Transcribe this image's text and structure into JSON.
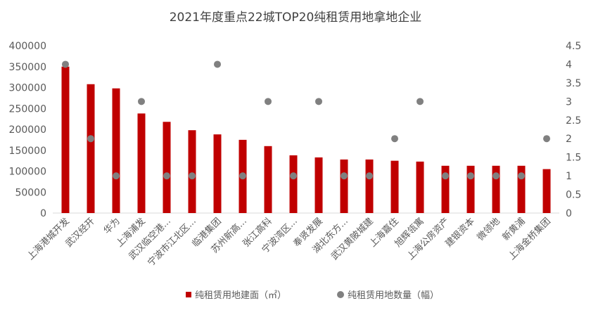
{
  "chart_data": {
    "type": "bar",
    "title": "2021年度重点22城TOP20纯租赁用地拿地企业",
    "categories": [
      "上海港城开发",
      "武汉经开",
      "华为",
      "上海浦发",
      "武汉临空港...",
      "宁波市江北区...",
      "临港集团",
      "苏州新高...",
      "张江高科",
      "宁波湾区...",
      "奉贤发展",
      "湖北东方...",
      "武汉黄陂城建",
      "上海嘉住",
      "旭辉瓴寓",
      "上海公房资产",
      "建银资本",
      "微领地",
      "新黄浦",
      "上海金桥集团"
    ],
    "series": [
      {
        "name": "纯租赁用地建面（㎡）",
        "type": "bar",
        "axis": "left",
        "color": "#C00000",
        "values": [
          350000,
          308000,
          298000,
          238000,
          218000,
          198000,
          188000,
          175000,
          160000,
          138000,
          133000,
          128000,
          128000,
          125000,
          123000,
          113000,
          113000,
          113000,
          113000,
          105000
        ]
      },
      {
        "name": "纯租赁用地数量（幅）",
        "type": "scatter",
        "axis": "right",
        "color": "#808080",
        "values": [
          4,
          2,
          1,
          3,
          1,
          1,
          4,
          1,
          3,
          1,
          3,
          1,
          1,
          2,
          3,
          1,
          1,
          1,
          1,
          2
        ]
      }
    ],
    "y_left": {
      "min": 0,
      "max": 400000,
      "ticks": [
        "0",
        "50000",
        "100000",
        "150000",
        "200000",
        "250000",
        "300000",
        "350000",
        "400000"
      ]
    },
    "y_right": {
      "min": 0,
      "max": 4.5,
      "ticks": [
        "0",
        "0.5",
        "1",
        "1.5",
        "2",
        "2.5",
        "3",
        "3.5",
        "4",
        "4.5"
      ]
    },
    "grid": false,
    "legend_position": "bottom"
  }
}
